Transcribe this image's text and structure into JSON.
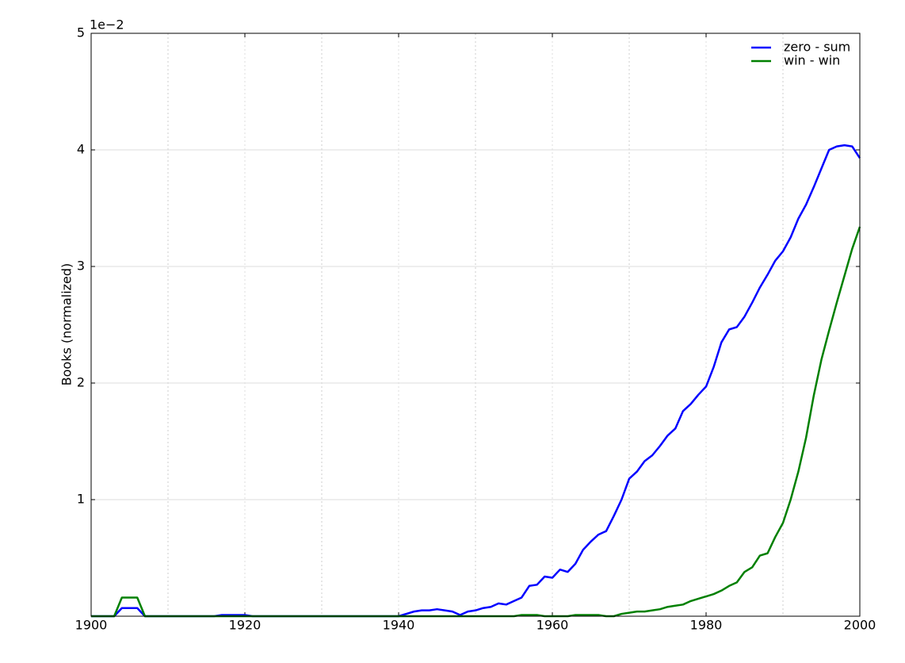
{
  "chart_data": {
    "type": "line",
    "y_label": "Books (normalized)",
    "y_offset_label": "1e−2",
    "x": [
      1900,
      1901,
      1902,
      1903,
      1904,
      1905,
      1906,
      1907,
      1908,
      1909,
      1910,
      1911,
      1912,
      1913,
      1914,
      1915,
      1916,
      1917,
      1918,
      1919,
      1920,
      1921,
      1922,
      1923,
      1924,
      1925,
      1926,
      1927,
      1928,
      1929,
      1930,
      1931,
      1932,
      1933,
      1934,
      1935,
      1936,
      1937,
      1938,
      1939,
      1940,
      1941,
      1942,
      1943,
      1944,
      1945,
      1946,
      1947,
      1948,
      1949,
      1950,
      1951,
      1952,
      1953,
      1954,
      1955,
      1956,
      1957,
      1958,
      1959,
      1960,
      1961,
      1962,
      1963,
      1964,
      1965,
      1966,
      1967,
      1968,
      1969,
      1970,
      1971,
      1972,
      1973,
      1974,
      1975,
      1976,
      1977,
      1978,
      1979,
      1980,
      1981,
      1982,
      1983,
      1984,
      1985,
      1986,
      1987,
      1988,
      1989,
      1990,
      1991,
      1992,
      1993,
      1994,
      1995,
      1996,
      1997,
      1998,
      1999,
      2000
    ],
    "series": [
      {
        "name": "zero - sum",
        "color": "#0000ff",
        "values": [
          0,
          0,
          0,
          0,
          0.07,
          0.07,
          0.07,
          0,
          0,
          0,
          0,
          0,
          0,
          0,
          0,
          0,
          0,
          0.01,
          0.01,
          0.01,
          0.01,
          0,
          0,
          0,
          0,
          0,
          0,
          0,
          0,
          0,
          0,
          0,
          0,
          0,
          0,
          0,
          0,
          0,
          0,
          0,
          0,
          0.02,
          0.04,
          0.05,
          0.05,
          0.06,
          0.05,
          0.04,
          0.01,
          0.04,
          0.05,
          0.07,
          0.08,
          0.11,
          0.1,
          0.13,
          0.16,
          0.26,
          0.27,
          0.34,
          0.33,
          0.4,
          0.38,
          0.45,
          0.57,
          0.64,
          0.7,
          0.73,
          0.86,
          1.0,
          1.18,
          1.24,
          1.33,
          1.38,
          1.46,
          1.55,
          1.61,
          1.76,
          1.82,
          1.9,
          1.97,
          2.14,
          2.35,
          2.46,
          2.48,
          2.57,
          2.69,
          2.82,
          2.93,
          3.05,
          3.13,
          3.25,
          3.41,
          3.53,
          3.68,
          3.84,
          4.0,
          4.03,
          4.04,
          4.03,
          3.93
        ]
      },
      {
        "name": "win - win",
        "color": "#008000",
        "values": [
          0,
          0,
          0,
          0,
          0.16,
          0.16,
          0.16,
          0,
          0,
          0,
          0,
          0,
          0,
          0,
          0,
          0,
          0,
          0,
          0,
          0,
          0,
          0,
          0,
          0,
          0,
          0,
          0,
          0,
          0,
          0,
          0,
          0,
          0,
          0,
          0,
          0,
          0,
          0,
          0,
          0,
          0,
          0,
          0,
          0,
          0,
          0,
          0,
          0,
          0,
          0,
          0,
          0,
          0,
          0,
          0,
          0,
          0.01,
          0.01,
          0.01,
          0,
          0,
          0,
          0,
          0.01,
          0.01,
          0.01,
          0.01,
          0,
          0,
          0.02,
          0.03,
          0.04,
          0.04,
          0.05,
          0.06,
          0.08,
          0.09,
          0.1,
          0.13,
          0.15,
          0.17,
          0.19,
          0.22,
          0.26,
          0.29,
          0.38,
          0.42,
          0.52,
          0.54,
          0.68,
          0.8,
          1.0,
          1.24,
          1.53,
          1.89,
          2.2,
          2.45,
          2.69,
          2.92,
          3.15,
          3.34
        ]
      }
    ],
    "xlim": [
      1900,
      2000
    ],
    "xticks": [
      1900,
      1920,
      1940,
      1960,
      1980,
      2000
    ],
    "x_minor_grid": [
      1910,
      1930,
      1950,
      1970,
      1990
    ],
    "ylim": [
      0,
      5
    ],
    "yticks": [
      1,
      2,
      3,
      4,
      5
    ],
    "grid": true,
    "legend": "upper right"
  }
}
